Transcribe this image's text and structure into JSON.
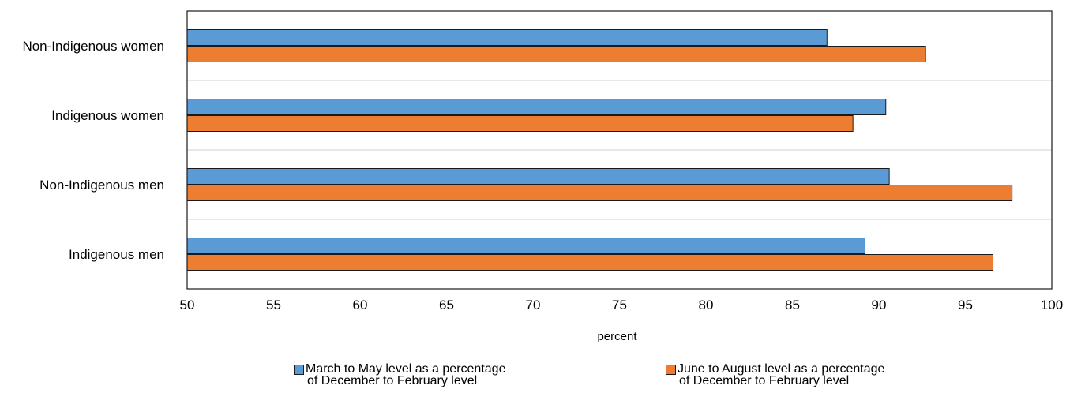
{
  "chart_data": {
    "type": "bar",
    "orientation": "horizontal",
    "categories": [
      "Non-Indigenous women",
      "Indigenous women",
      "Non-Indigenous men",
      "Indigenous men"
    ],
    "series": [
      {
        "name": "March to May level as a percentage of December to February level",
        "legend_lines": [
          "March to May level as a percentage",
          "of December to February level"
        ],
        "values": [
          87.0,
          90.4,
          90.6,
          89.2
        ],
        "color": "#5b9bd5"
      },
      {
        "name": "June to August level as a percentage of December to February level",
        "legend_lines": [
          "June to August level as a percentage",
          "of December to February level"
        ],
        "values": [
          92.7,
          88.5,
          97.7,
          96.6
        ],
        "color": "#ed7d31"
      }
    ],
    "xlabel": "percent",
    "xlim": [
      50,
      100
    ],
    "xticks": [
      "50",
      "55",
      "60",
      "65",
      "70",
      "75",
      "80",
      "85",
      "90",
      "95",
      "100"
    ],
    "grid": "horizontal separators",
    "legend_position": "bottom"
  }
}
